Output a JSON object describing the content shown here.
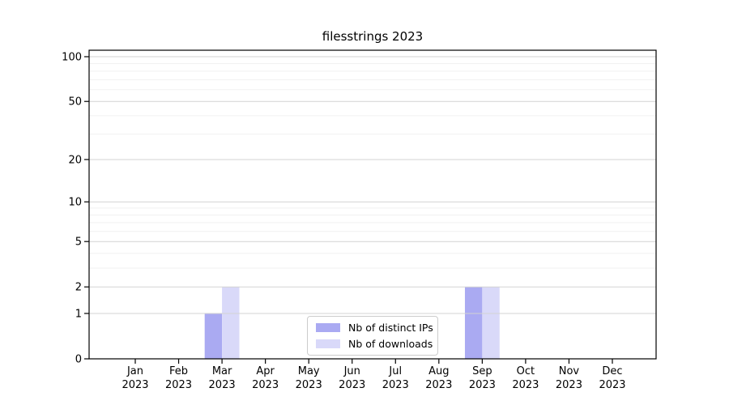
{
  "chart_data": {
    "type": "bar",
    "title": "filesstrings 2023",
    "categories": [
      "Jan",
      "Feb",
      "Mar",
      "Apr",
      "May",
      "Jun",
      "Jul",
      "Aug",
      "Sep",
      "Oct",
      "Nov",
      "Dec"
    ],
    "category_year": "2023",
    "series": [
      {
        "name": "Nb of distinct IPs",
        "color": "#aaaaf2",
        "values": [
          0,
          0,
          1,
          0,
          0,
          0,
          0,
          0,
          2,
          0,
          0,
          0
        ]
      },
      {
        "name": "Nb of downloads",
        "color": "#d9d9f9",
        "values": [
          0,
          0,
          2,
          0,
          0,
          0,
          0,
          0,
          2,
          0,
          0,
          0
        ]
      }
    ],
    "yscale": "log1p",
    "ylim": [
      0,
      111
    ],
    "y_ticks": [
      0,
      1,
      2,
      5,
      10,
      20,
      50,
      100
    ],
    "y_minor_ticks": [
      3,
      4,
      6,
      7,
      8,
      9,
      30,
      40,
      60,
      70,
      80,
      90
    ],
    "grid": true,
    "grid_major_color": "#d3d3d3",
    "grid_minor_color": "#f1f1f1",
    "axis_color": "#000000",
    "legend_position": "lower center"
  }
}
